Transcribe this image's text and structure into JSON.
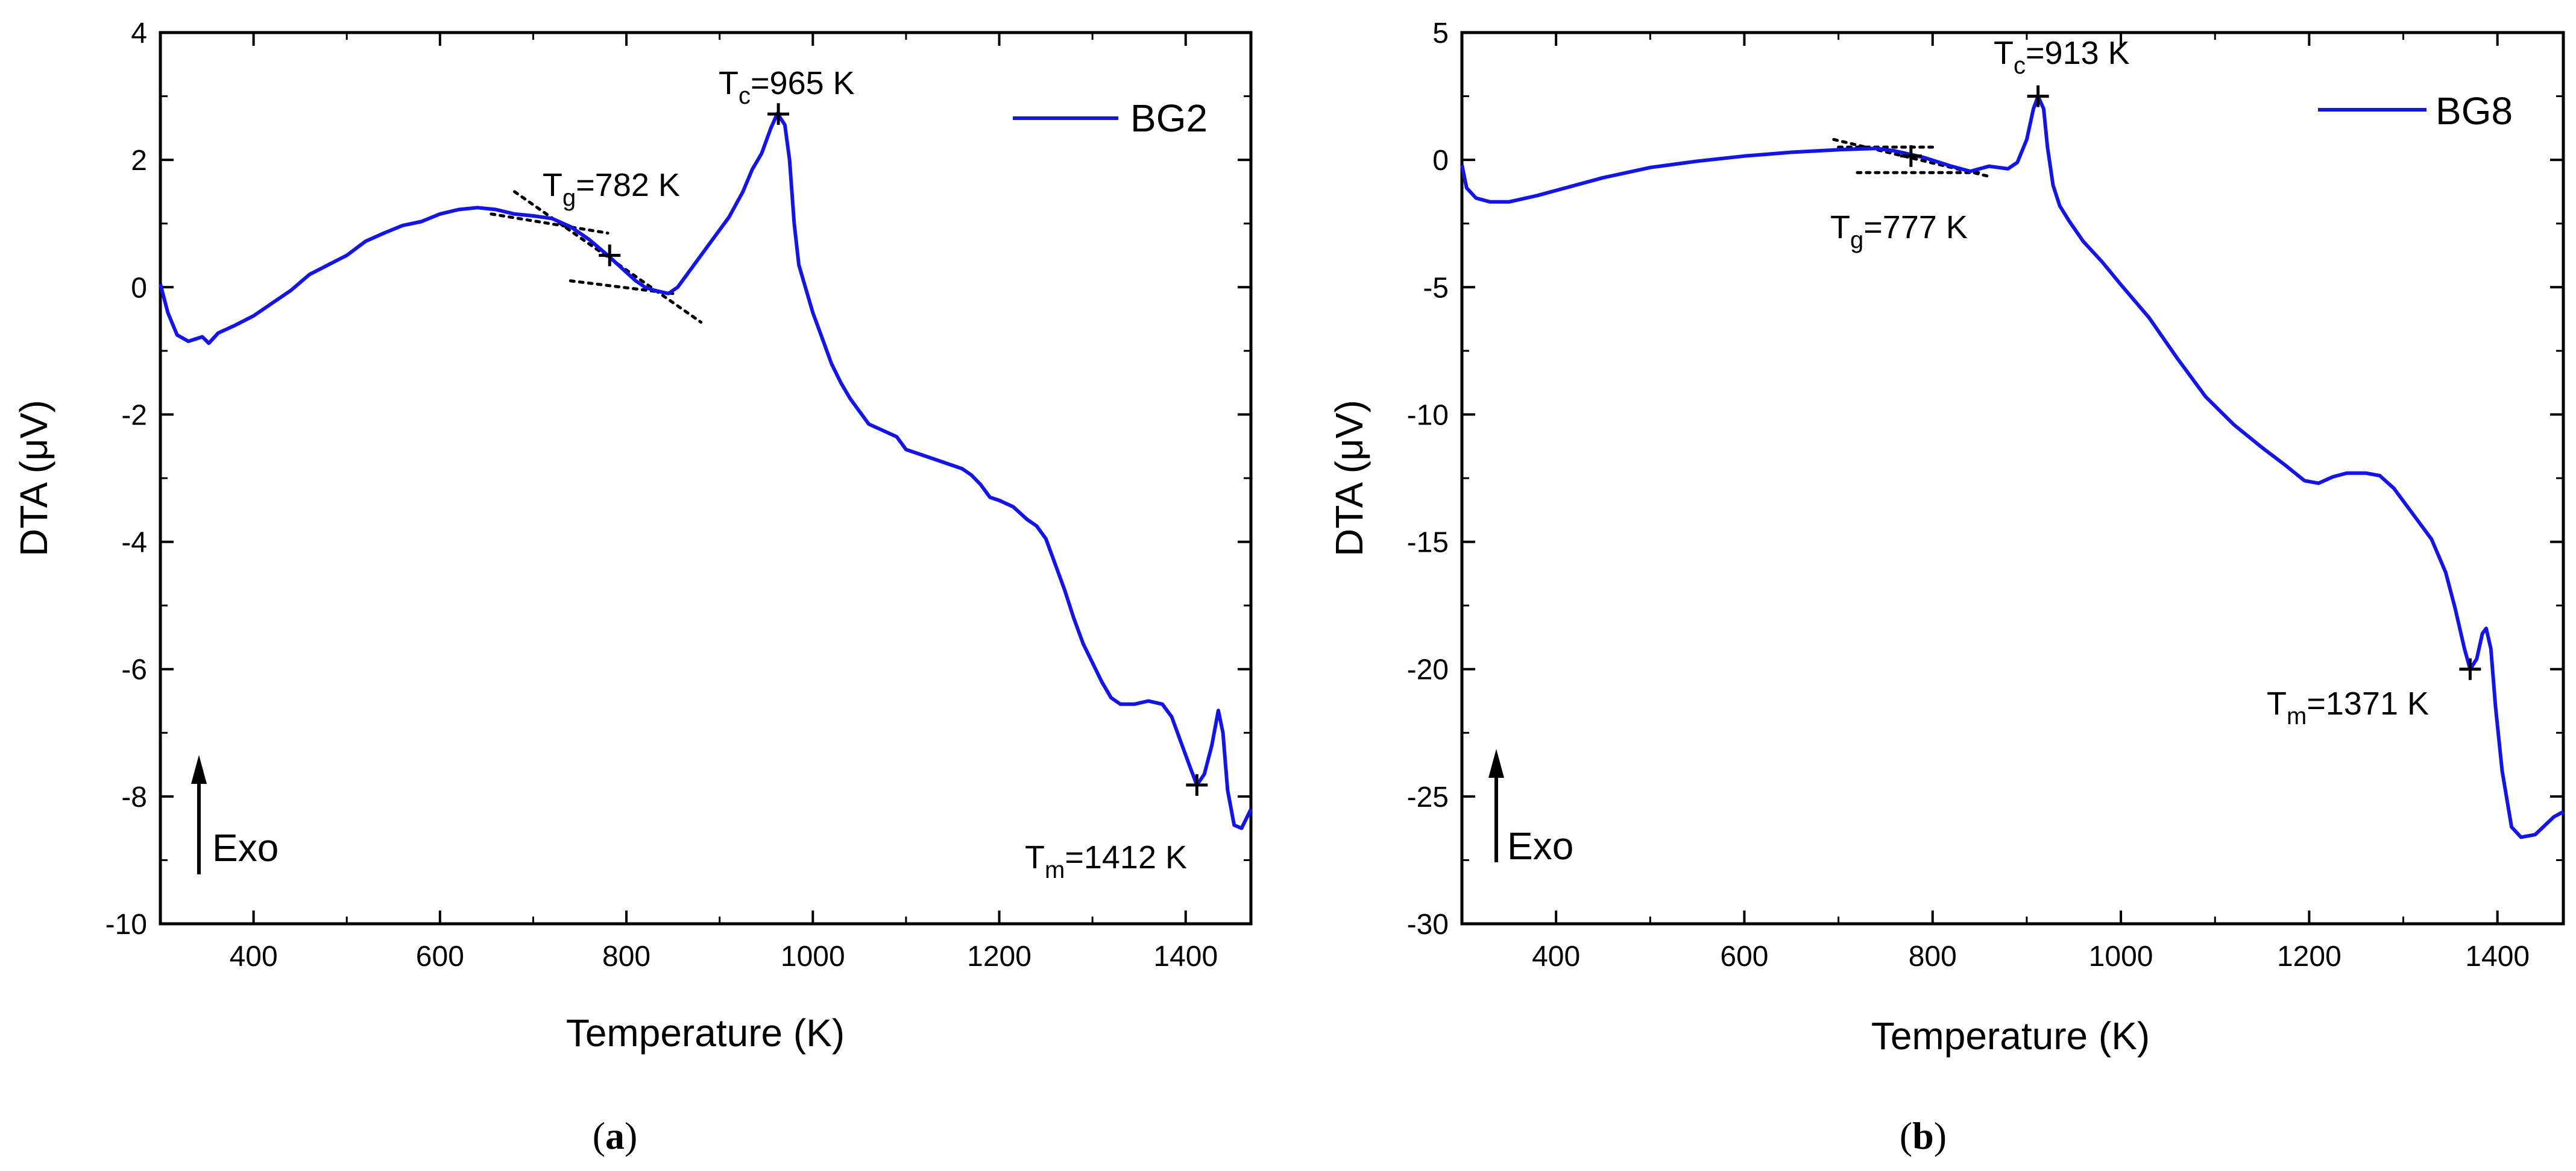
{
  "colors": {
    "series": "#1414e6",
    "axis": "#000000",
    "tangent": "#000000"
  },
  "chart_data": [
    {
      "type": "line",
      "panel_label": "a",
      "xlabel": "Temperature (K)",
      "ylabel": "DTA (μV)",
      "xlim": [
        300,
        1470
      ],
      "ylim": [
        -10,
        4
      ],
      "xticks": [
        400,
        600,
        800,
        1000,
        1200,
        1400
      ],
      "yticks": [
        -10,
        -8,
        -6,
        -4,
        -2,
        0,
        2,
        4
      ],
      "legend": {
        "position": "top-right"
      },
      "series": [
        {
          "name": "BG2",
          "points": [
            [
              300,
              0.05
            ],
            [
              308,
              -0.4
            ],
            [
              318,
              -0.75
            ],
            [
              330,
              -0.85
            ],
            [
              345,
              -0.78
            ],
            [
              352,
              -0.88
            ],
            [
              362,
              -0.72
            ],
            [
              380,
              -0.6
            ],
            [
              400,
              -0.45
            ],
            [
              420,
              -0.25
            ],
            [
              440,
              -0.05
            ],
            [
              460,
              0.2
            ],
            [
              480,
              0.35
            ],
            [
              500,
              0.5
            ],
            [
              520,
              0.72
            ],
            [
              540,
              0.85
            ],
            [
              560,
              0.97
            ],
            [
              580,
              1.03
            ],
            [
              600,
              1.15
            ],
            [
              620,
              1.22
            ],
            [
              640,
              1.25
            ],
            [
              660,
              1.22
            ],
            [
              680,
              1.15
            ],
            [
              700,
              1.12
            ],
            [
              720,
              1.08
            ],
            [
              740,
              0.95
            ],
            [
              760,
              0.75
            ],
            [
              780,
              0.5
            ],
            [
              795,
              0.3
            ],
            [
              810,
              0.1
            ],
            [
              820,
              0.0
            ],
            [
              830,
              -0.05
            ],
            [
              845,
              -0.1
            ],
            [
              855,
              0.0
            ],
            [
              870,
              0.3
            ],
            [
              890,
              0.7
            ],
            [
              910,
              1.1
            ],
            [
              925,
              1.5
            ],
            [
              935,
              1.85
            ],
            [
              945,
              2.1
            ],
            [
              955,
              2.5
            ],
            [
              962,
              2.73
            ],
            [
              970,
              2.55
            ],
            [
              975,
              2.0
            ],
            [
              980,
              1.0
            ],
            [
              985,
              0.35
            ],
            [
              992,
              0.0
            ],
            [
              1000,
              -0.4
            ],
            [
              1010,
              -0.8
            ],
            [
              1020,
              -1.2
            ],
            [
              1030,
              -1.5
            ],
            [
              1040,
              -1.75
            ],
            [
              1050,
              -1.95
            ],
            [
              1060,
              -2.15
            ],
            [
              1075,
              -2.25
            ],
            [
              1090,
              -2.35
            ],
            [
              1100,
              -2.55
            ],
            [
              1120,
              -2.65
            ],
            [
              1140,
              -2.75
            ],
            [
              1160,
              -2.85
            ],
            [
              1170,
              -2.95
            ],
            [
              1180,
              -3.1
            ],
            [
              1190,
              -3.3
            ],
            [
              1200,
              -3.35
            ],
            [
              1215,
              -3.45
            ],
            [
              1230,
              -3.65
            ],
            [
              1240,
              -3.75
            ],
            [
              1250,
              -3.95
            ],
            [
              1260,
              -4.35
            ],
            [
              1270,
              -4.75
            ],
            [
              1280,
              -5.2
            ],
            [
              1290,
              -5.6
            ],
            [
              1300,
              -5.9
            ],
            [
              1310,
              -6.2
            ],
            [
              1320,
              -6.45
            ],
            [
              1330,
              -6.55
            ],
            [
              1345,
              -6.55
            ],
            [
              1360,
              -6.5
            ],
            [
              1375,
              -6.55
            ],
            [
              1385,
              -6.75
            ],
            [
              1395,
              -7.15
            ],
            [
              1405,
              -7.55
            ],
            [
              1412,
              -7.82
            ],
            [
              1420,
              -7.65
            ],
            [
              1428,
              -7.2
            ],
            [
              1435,
              -6.65
            ],
            [
              1440,
              -7.0
            ],
            [
              1445,
              -7.9
            ],
            [
              1452,
              -8.45
            ],
            [
              1460,
              -8.5
            ],
            [
              1470,
              -8.2
            ]
          ]
        }
      ],
      "tangents": [
        [
          [
            655,
            1.15
          ],
          [
            780,
            0.85
          ]
        ],
        [
          [
            680,
            1.5
          ],
          [
            880,
            -0.55
          ]
        ],
        [
          [
            740,
            0.1
          ],
          [
            850,
            -0.1
          ]
        ]
      ],
      "markers": [
        [
          782,
          0.5
        ],
        [
          963,
          2.72
        ],
        [
          1412,
          -7.82
        ]
      ],
      "annotations": [
        {
          "sym": "T",
          "sub": "g",
          "rest": "=782 K"
        },
        {
          "sym": "T",
          "sub": "c",
          "rest": "=965 K"
        },
        {
          "sym": "T",
          "sub": "m",
          "rest": "=1412 K"
        },
        {
          "text": "Exo"
        }
      ]
    },
    {
      "type": "line",
      "panel_label": "b",
      "xlabel": "Temperature (K)",
      "ylabel": "DTA (μV)",
      "xlim": [
        300,
        1470
      ],
      "ylim": [
        -30,
        5
      ],
      "xticks": [
        400,
        600,
        800,
        1000,
        1200,
        1400
      ],
      "yticks": [
        -30,
        -25,
        -20,
        -15,
        -10,
        -5,
        0,
        5
      ],
      "legend": {
        "position": "top-right"
      },
      "series": [
        {
          "name": "BG8",
          "points": [
            [
              300,
              -0.2
            ],
            [
              305,
              -1.1
            ],
            [
              315,
              -1.5
            ],
            [
              330,
              -1.65
            ],
            [
              350,
              -1.65
            ],
            [
              380,
              -1.4
            ],
            [
              410,
              -1.1
            ],
            [
              450,
              -0.7
            ],
            [
              500,
              -0.3
            ],
            [
              550,
              -0.05
            ],
            [
              600,
              0.15
            ],
            [
              650,
              0.3
            ],
            [
              700,
              0.4
            ],
            [
              740,
              0.45
            ],
            [
              760,
              0.35
            ],
            [
              790,
              0.1
            ],
            [
              820,
              -0.25
            ],
            [
              840,
              -0.45
            ],
            [
              850,
              -0.35
            ],
            [
              860,
              -0.25
            ],
            [
              870,
              -0.3
            ],
            [
              880,
              -0.35
            ],
            [
              890,
              -0.1
            ],
            [
              900,
              0.8
            ],
            [
              907,
              2.0
            ],
            [
              912,
              2.5
            ],
            [
              918,
              2.0
            ],
            [
              922,
              0.5
            ],
            [
              928,
              -1.0
            ],
            [
              935,
              -1.8
            ],
            [
              945,
              -2.4
            ],
            [
              960,
              -3.2
            ],
            [
              980,
              -4.0
            ],
            [
              1000,
              -4.9
            ],
            [
              1030,
              -6.2
            ],
            [
              1060,
              -7.8
            ],
            [
              1090,
              -9.3
            ],
            [
              1120,
              -10.4
            ],
            [
              1150,
              -11.3
            ],
            [
              1175,
              -12.0
            ],
            [
              1195,
              -12.6
            ],
            [
              1210,
              -12.7
            ],
            [
              1225,
              -12.45
            ],
            [
              1240,
              -12.3
            ],
            [
              1260,
              -12.3
            ],
            [
              1275,
              -12.4
            ],
            [
              1290,
              -12.9
            ],
            [
              1310,
              -13.9
            ],
            [
              1330,
              -14.9
            ],
            [
              1345,
              -16.2
            ],
            [
              1355,
              -17.6
            ],
            [
              1365,
              -19.2
            ],
            [
              1371,
              -20.0
            ],
            [
              1378,
              -19.6
            ],
            [
              1384,
              -18.6
            ],
            [
              1388,
              -18.4
            ],
            [
              1393,
              -19.2
            ],
            [
              1398,
              -21.5
            ],
            [
              1405,
              -24.0
            ],
            [
              1415,
              -26.2
            ],
            [
              1425,
              -26.6
            ],
            [
              1440,
              -26.5
            ],
            [
              1460,
              -25.8
            ],
            [
              1470,
              -25.6
            ]
          ]
        }
      ],
      "tangents": [
        [
          [
            695,
            0.8
          ],
          [
            860,
            -0.65
          ]
        ],
        [
          [
            700,
            0.5
          ],
          [
            800,
            0.5
          ]
        ],
        [
          [
            720,
            -0.5
          ],
          [
            850,
            -0.5
          ]
        ]
      ],
      "markers": [
        [
          777,
          0.15
        ],
        [
          912,
          2.5
        ],
        [
          1371,
          -20.0
        ]
      ],
      "annotations": [
        {
          "sym": "T",
          "sub": "g",
          "rest": "=777 K"
        },
        {
          "sym": "T",
          "sub": "c",
          "rest": "=913 K"
        },
        {
          "sym": "T",
          "sub": "m",
          "rest": "=1371 K"
        },
        {
          "text": "Exo"
        }
      ]
    }
  ]
}
